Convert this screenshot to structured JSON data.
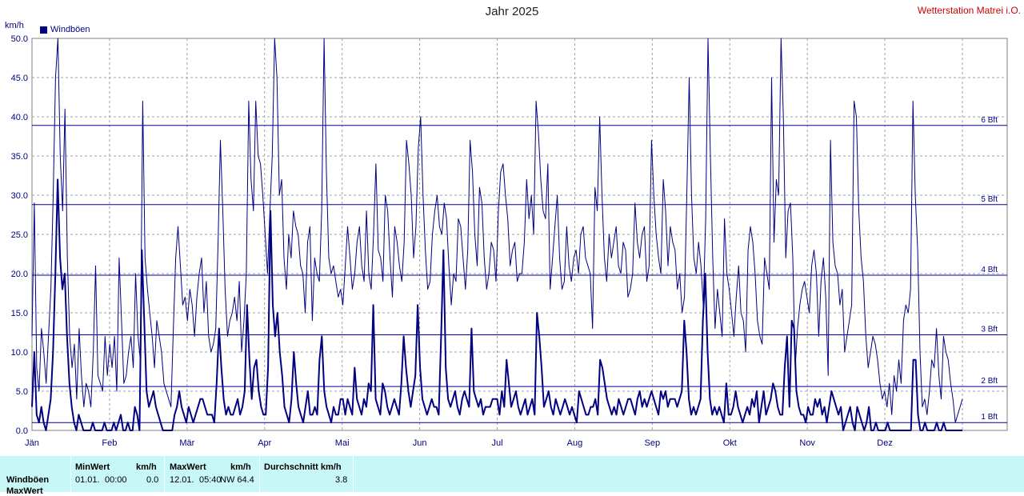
{
  "title": "Jahr 2025",
  "station": "Wetterstation Matrei i.O.",
  "unit": "km/h",
  "legend": "Windböen",
  "colors": {
    "series": "#000080",
    "band_line": "#0000a0",
    "grid": "#a0a0a0",
    "stats_bg": "#c8f7f7"
  },
  "chart_data": {
    "type": "line",
    "ylim": [
      0,
      50
    ],
    "yticks": [
      "0.0",
      "5.0",
      "10.0",
      "15.0",
      "20.0",
      "25.0",
      "30.0",
      "35.0",
      "40.0",
      "45.0",
      "50.0"
    ],
    "months": [
      "Jän",
      "Feb",
      "Mär",
      "Apr",
      "Mai",
      "Jun",
      "Jul",
      "Aug",
      "Sep",
      "Okt",
      "Nov",
      "Dez"
    ],
    "beaufort": [
      {
        "label": "1 Bft",
        "value": 1.0
      },
      {
        "label": "2 Bft",
        "value": 5.6
      },
      {
        "label": "3 Bft",
        "value": 12.2
      },
      {
        "label": "4 Bft",
        "value": 19.8
      },
      {
        "label": "5 Bft",
        "value": 28.8
      },
      {
        "label": "6 Bft",
        "value": 38.9
      }
    ],
    "series": [
      {
        "name": "Windböen",
        "style": "thin",
        "values": [
          12,
          29,
          8,
          5,
          13,
          10,
          6,
          12,
          18,
          30,
          45,
          50,
          35,
          28,
          41,
          22,
          12,
          8,
          11,
          4,
          13,
          7,
          3,
          6,
          5,
          3,
          10,
          21,
          7,
          6,
          5,
          12,
          7,
          11,
          8,
          12,
          5,
          22,
          14,
          6,
          7,
          10,
          12,
          8,
          20,
          12,
          9,
          42,
          22,
          18,
          15,
          12,
          8,
          14,
          12,
          10,
          6,
          5,
          4,
          3,
          13,
          22,
          26,
          21,
          16,
          17,
          14,
          18,
          16,
          12,
          17,
          20,
          22,
          15,
          19,
          12,
          10,
          11,
          13,
          24,
          37,
          28,
          18,
          12,
          14,
          15,
          17,
          14,
          19,
          10,
          14,
          20,
          42,
          32,
          28,
          42,
          35,
          34,
          30,
          25,
          20,
          28,
          35,
          50,
          45,
          30,
          32,
          22,
          18,
          25,
          22,
          28,
          26,
          25,
          21,
          20,
          15,
          24,
          26,
          14,
          22,
          20,
          19,
          28,
          50,
          33,
          22,
          20,
          21,
          19,
          17,
          18,
          16,
          21,
          26,
          22,
          18,
          20,
          24,
          26,
          21,
          19,
          28,
          20,
          18,
          25,
          34,
          23,
          22,
          19,
          30,
          28,
          22,
          17,
          26,
          24,
          21,
          19,
          24,
          37,
          34,
          30,
          22,
          26,
          36,
          40,
          30,
          23,
          18,
          19,
          25,
          28,
          30,
          26,
          25,
          29,
          27,
          21,
          16,
          20,
          19,
          27,
          26,
          22,
          18,
          23,
          37,
          33,
          25,
          21,
          31,
          29,
          22,
          18,
          20,
          24,
          23,
          19,
          28,
          33,
          34,
          30,
          27,
          21,
          23,
          24,
          19,
          20,
          20,
          24,
          32,
          27,
          30,
          25,
          42,
          38,
          32,
          28,
          27,
          34,
          18,
          22,
          26,
          30,
          22,
          18,
          19,
          26,
          21,
          19,
          22,
          23,
          20,
          25,
          26,
          22,
          21,
          20,
          13,
          31,
          28,
          40,
          30,
          22,
          19,
          25,
          22,
          24,
          26,
          21,
          20,
          24,
          23,
          17,
          18,
          20,
          29,
          24,
          22,
          25,
          26,
          19,
          21,
          37,
          30,
          25,
          22,
          20,
          32,
          28,
          21,
          26,
          24,
          23,
          18,
          20,
          15,
          17,
          30,
          45,
          30,
          22,
          20,
          24,
          21,
          16,
          27,
          50,
          35,
          22,
          13,
          18,
          15,
          12,
          27,
          20,
          18,
          15,
          12,
          17,
          21,
          15,
          14,
          10,
          23,
          26,
          24,
          20,
          14,
          12,
          11,
          22,
          20,
          18,
          45,
          24,
          32,
          30,
          50,
          40,
          22,
          28,
          29,
          22,
          8,
          13,
          16,
          18,
          19,
          17,
          15,
          21,
          23,
          20,
          12,
          19,
          22,
          17,
          7,
          37,
          24,
          21,
          20,
          16,
          18,
          10,
          12,
          14,
          16,
          42,
          40,
          28,
          22,
          19,
          12,
          8,
          10,
          12,
          11,
          9,
          6,
          4,
          5,
          3,
          6,
          2,
          7,
          5,
          9,
          6,
          14,
          16,
          15,
          18,
          42,
          30,
          23,
          10,
          3,
          4,
          2,
          5,
          9,
          8,
          13,
          7,
          4,
          12,
          10,
          9,
          6,
          4,
          1,
          2,
          3,
          4
        ]
      },
      {
        "name": "Windböen",
        "style": "bold",
        "values": [
          3,
          10,
          2,
          1,
          3,
          1,
          0,
          2,
          4,
          10,
          20,
          32,
          22,
          18,
          20,
          12,
          6,
          3,
          1,
          0,
          2,
          1,
          0,
          0,
          0,
          0,
          1,
          0,
          0,
          0,
          0,
          1,
          0,
          0,
          0,
          1,
          0,
          1,
          2,
          0,
          0,
          1,
          0,
          0,
          3,
          2,
          0,
          23,
          14,
          5,
          3,
          4,
          5,
          3,
          2,
          1,
          0,
          0,
          0,
          0,
          0,
          2,
          3,
          5,
          3,
          2,
          1,
          3,
          2,
          1,
          2,
          3,
          4,
          4,
          3,
          2,
          2,
          2,
          1,
          6,
          13,
          8,
          4,
          2,
          3,
          2,
          2,
          3,
          4,
          2,
          3,
          5,
          16,
          9,
          4,
          8,
          9,
          5,
          3,
          2,
          2,
          8,
          28,
          16,
          12,
          15,
          10,
          7,
          3,
          2,
          1,
          4,
          10,
          6,
          3,
          2,
          1,
          3,
          5,
          2,
          2,
          3,
          2,
          9,
          12,
          5,
          3,
          2,
          1,
          3,
          2,
          2,
          4,
          4,
          2,
          4,
          3,
          2,
          8,
          4,
          3,
          2,
          4,
          3,
          6,
          5,
          16,
          4,
          3,
          2,
          6,
          5,
          3,
          2,
          3,
          4,
          3,
          2,
          6,
          12,
          8,
          5,
          3,
          5,
          7,
          16,
          8,
          4,
          3,
          2,
          3,
          4,
          3,
          3,
          2,
          12,
          23,
          8,
          4,
          3,
          4,
          5,
          3,
          2,
          4,
          5,
          4,
          3,
          13,
          5,
          4,
          3,
          4,
          2,
          3,
          3,
          3,
          4,
          4,
          4,
          2,
          5,
          3,
          9,
          6,
          3,
          4,
          5,
          3,
          2,
          3,
          4,
          2,
          3,
          4,
          2,
          15,
          12,
          8,
          3,
          4,
          5,
          3,
          2,
          4,
          3,
          2,
          3,
          4,
          3,
          2,
          3,
          2,
          1,
          5,
          4,
          3,
          2,
          2,
          3,
          3,
          4,
          2,
          9,
          8,
          6,
          4,
          3,
          2,
          3,
          2,
          4,
          3,
          2,
          3,
          4,
          4,
          3,
          2,
          4,
          5,
          3,
          4,
          3,
          4,
          5,
          4,
          3,
          2,
          5,
          4,
          5,
          3,
          4,
          4,
          4,
          3,
          4,
          5,
          14,
          10,
          4,
          2,
          3,
          2,
          3,
          4,
          14,
          20,
          10,
          4,
          2,
          3,
          2,
          3,
          2,
          1,
          6,
          2,
          2,
          3,
          5,
          3,
          2,
          1,
          2,
          3,
          2,
          4,
          3,
          5,
          1,
          3,
          5,
          2,
          3,
          4,
          6,
          5,
          3,
          2,
          2,
          8,
          12,
          3,
          14,
          13,
          5,
          3,
          2,
          2,
          1,
          3,
          2,
          2,
          4,
          3,
          4,
          2,
          3,
          1,
          3,
          5,
          4,
          3,
          2,
          3,
          0,
          1,
          2,
          3,
          1,
          0,
          3,
          2,
          1,
          0,
          1,
          3,
          0,
          0,
          1,
          0,
          0,
          0,
          0,
          1,
          0,
          0,
          0,
          0,
          0,
          0,
          0,
          0,
          0,
          0,
          9,
          9,
          2,
          0,
          0,
          1,
          0,
          0,
          0,
          0,
          1,
          0,
          0,
          1,
          0,
          0,
          0,
          0,
          0,
          0,
          0,
          0
        ]
      }
    ]
  },
  "stats": {
    "headers": {
      "min": "MinWert",
      "max": "MaxWert",
      "avg": "Durchschnitt km/h",
      "unit": "km/h"
    },
    "row_label": "Windböen",
    "row_label2": "MaxWert",
    "min_date": "01.01.",
    "min_time": "00:00",
    "min_val": "0.0",
    "max_date": "12.01.",
    "max_time": "05:40",
    "max_val": "NW 64.4",
    "avg_val": "3.8"
  }
}
